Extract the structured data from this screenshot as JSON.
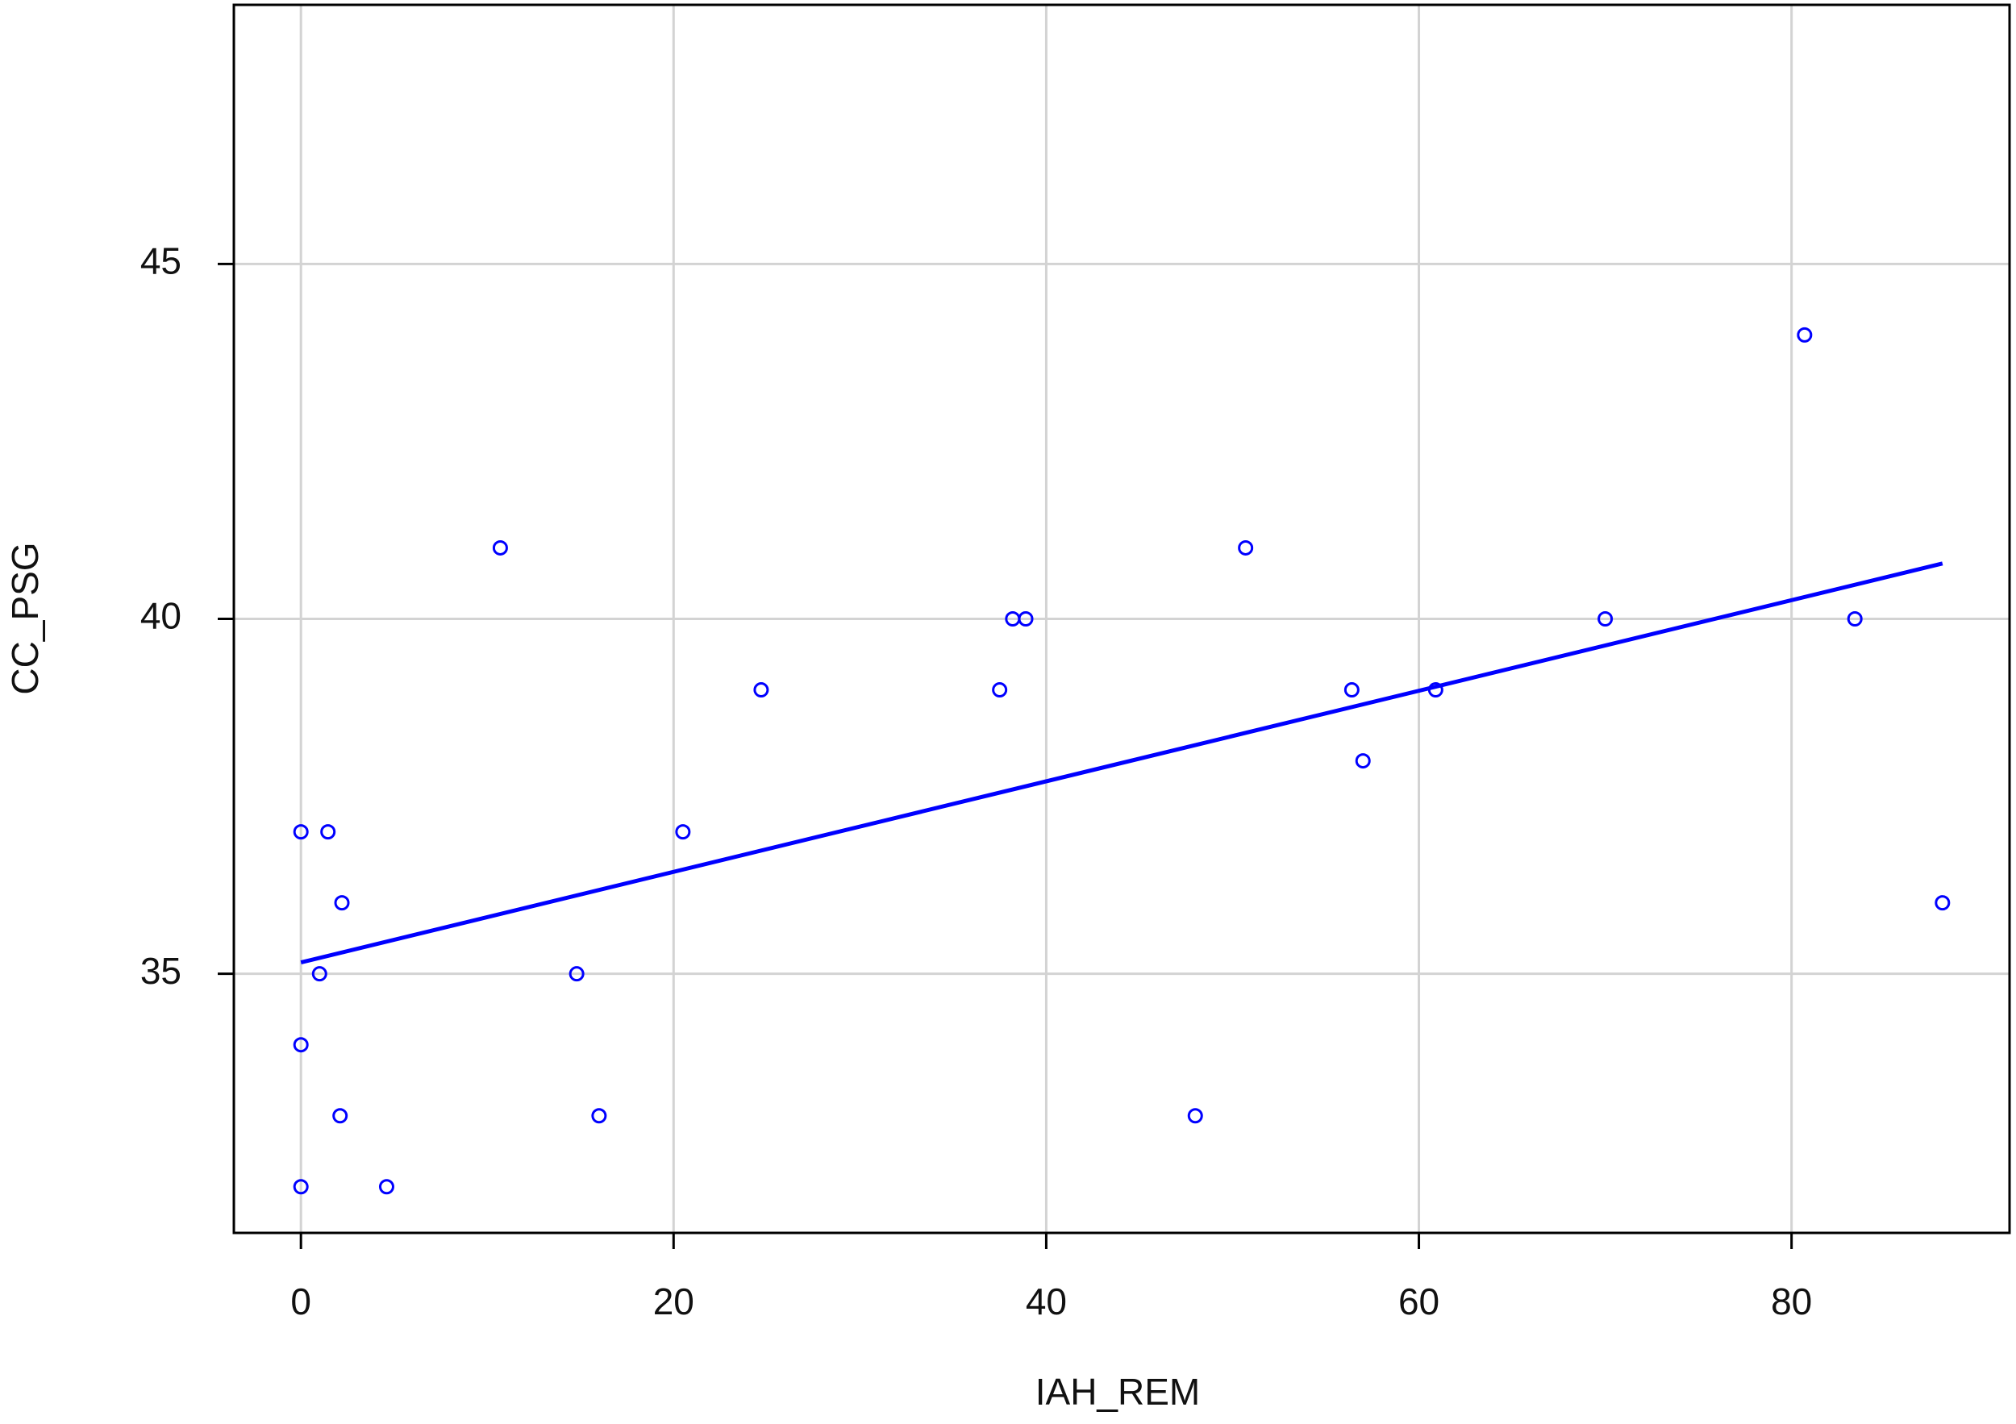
{
  "chart_data": {
    "type": "scatter",
    "x_label": "IAH_REM",
    "y_label": "CC_PSG",
    "xlim": [
      -3.6,
      91.7
    ],
    "ylim": [
      31.35,
      48.65
    ],
    "xticks": [
      0,
      20,
      40,
      60,
      80
    ],
    "yticks": [
      35,
      40,
      45
    ],
    "grid": true,
    "series": [
      {
        "color": "#0000ff",
        "x": [
          0,
          1.45,
          2.2,
          1.0,
          0,
          2.1,
          0,
          4.6,
          10.7,
          14.8,
          16.0,
          20.5,
          24.7,
          37.5,
          38.2,
          38.9,
          48.0,
          50.7,
          56.4,
          57.0,
          60.9,
          70.0,
          80.7,
          83.4,
          88.1
        ],
        "values": [
          37,
          37,
          36,
          35,
          34,
          33,
          32,
          32,
          41,
          35,
          33,
          37,
          39,
          39,
          40,
          40,
          33,
          41,
          39,
          38,
          39,
          40,
          44,
          40,
          36
        ]
      }
    ],
    "trend_line": {
      "color": "#0000ff",
      "x": [
        0,
        88.1
      ],
      "values": [
        35.16,
        40.78
      ]
    }
  }
}
